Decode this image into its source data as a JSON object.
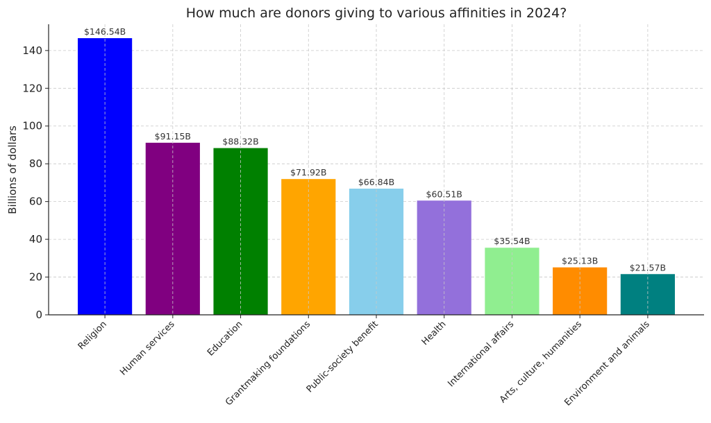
{
  "chart_data": {
    "type": "bar",
    "title": "How much are donors giving to various affinities in 2024?",
    "xlabel": "",
    "ylabel": "Billions of dollars",
    "categories": [
      "Religion",
      "Human services",
      "Education",
      "Grantmaking foundations",
      "Public-society benefit",
      "Health",
      "International affairs",
      "Arts, culture, humanities",
      "Environment and animals"
    ],
    "values": [
      146.54,
      91.15,
      88.32,
      71.92,
      66.84,
      60.51,
      35.54,
      25.13,
      21.57
    ],
    "data_labels": [
      "$146.54B",
      "$91.15B",
      "$88.32B",
      "$71.92B",
      "$66.84B",
      "$60.51B",
      "$35.54B",
      "$25.13B",
      "$21.57B"
    ],
    "colors": [
      "#0000FF",
      "#800080",
      "#008000",
      "#FFA500",
      "#87CEEB",
      "#9370DB",
      "#90EE90",
      "#FF8C00",
      "#008080"
    ],
    "yticks": [
      0,
      20,
      40,
      60,
      80,
      100,
      120,
      140
    ],
    "ylim": [
      0,
      153.9
    ],
    "grid": true,
    "legend": "none"
  }
}
